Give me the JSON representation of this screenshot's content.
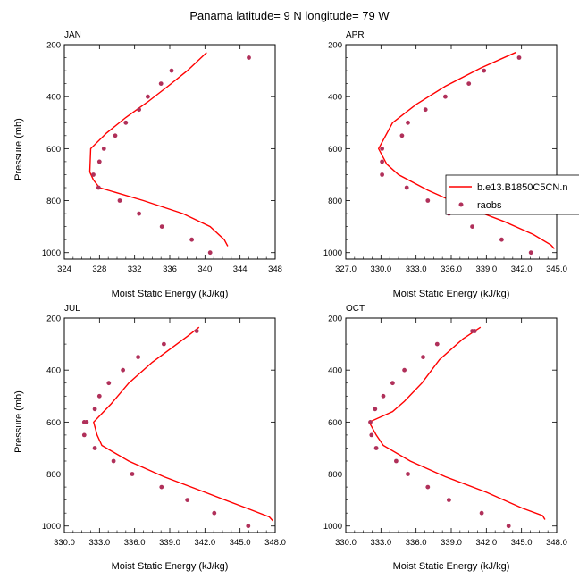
{
  "title": "Panama  latitude= 9 N longitude= 79 W",
  "colors": {
    "model": "#ff0000",
    "obs": "#b0305a",
    "axis": "#000000"
  },
  "legend": {
    "model_label": "b.e13.B1850C5CN.n",
    "obs_label": "raobs"
  },
  "chart_data": [
    {
      "type": "line",
      "panel": "JAN",
      "xlabel": "Moist Static Energy (kJ/kg)",
      "ylabel": "Pressure (mb)",
      "xlim": [
        324,
        348
      ],
      "ylim": [
        200,
        1025
      ],
      "y_inverted": true,
      "xticks": [
        324,
        328,
        332,
        336,
        340,
        344,
        348
      ],
      "xticklabels": [
        "324",
        "328",
        "332",
        "336",
        "340",
        "344",
        "348"
      ],
      "yticks": [
        200,
        400,
        600,
        800,
        1000
      ],
      "series": [
        {
          "marker": "line",
          "x": [
            340.2,
            338.0,
            335.8,
            333.5,
            331.0,
            328.8,
            327.0,
            326.9,
            327.3,
            328.0,
            333.0,
            337.5,
            340.6,
            342.2,
            342.6
          ],
          "y": [
            230,
            300,
            360,
            420,
            480,
            540,
            600,
            690,
            720,
            750,
            800,
            850,
            900,
            950,
            975
          ]
        },
        {
          "marker": "dot",
          "x": [
            345.0,
            336.2,
            335.0,
            333.5,
            332.5,
            331.0,
            329.8,
            328.5,
            328.0,
            327.3,
            327.9,
            330.3,
            332.5,
            335.1,
            338.5,
            340.6
          ],
          "y": [
            250,
            300,
            350,
            400,
            450,
            500,
            550,
            600,
            650,
            700,
            750,
            800,
            850,
            900,
            950,
            1000
          ]
        }
      ]
    },
    {
      "type": "line",
      "panel": "APR",
      "xlabel": "Moist Static Energy (kJ/kg)",
      "ylabel": "",
      "xlim": [
        327,
        345
      ],
      "ylim": [
        200,
        1025
      ],
      "y_inverted": true,
      "xticks": [
        327,
        330,
        333,
        336,
        339,
        342,
        345
      ],
      "xticklabels": [
        "327.0",
        "330.0",
        "333.0",
        "336.0",
        "339.0",
        "342.0",
        "345.0"
      ],
      "yticks": [
        200,
        400,
        600,
        800,
        1000
      ],
      "series": [
        {
          "marker": "line",
          "x": [
            341.5,
            338.5,
            335.5,
            333.0,
            331.0,
            329.8,
            330.5,
            331.5,
            334.0,
            337.0,
            340.5,
            343.0,
            344.5,
            344.8
          ],
          "y": [
            230,
            290,
            360,
            430,
            500,
            600,
            660,
            700,
            760,
            820,
            880,
            930,
            970,
            985
          ]
        },
        {
          "marker": "dot",
          "x": [
            341.8,
            338.8,
            337.5,
            335.5,
            333.8,
            332.3,
            331.8,
            330.1,
            330.1,
            330.1,
            332.2,
            334.0,
            335.8,
            337.8,
            340.3,
            342.8
          ],
          "y": [
            250,
            300,
            350,
            400,
            450,
            500,
            550,
            600,
            650,
            700,
            750,
            800,
            850,
            900,
            950,
            1000
          ]
        }
      ]
    },
    {
      "type": "line",
      "panel": "JUL",
      "xlabel": "Moist Static Energy (kJ/kg)",
      "ylabel": "Pressure (mb)",
      "xlim": [
        330,
        348
      ],
      "ylim": [
        200,
        1025
      ],
      "y_inverted": true,
      "xticks": [
        330,
        333,
        336,
        339,
        342,
        345,
        348
      ],
      "xticklabels": [
        "330.0",
        "333.0",
        "336.0",
        "339.0",
        "342.0",
        "345.0",
        "348.0"
      ],
      "yticks": [
        200,
        400,
        600,
        800,
        1000
      ],
      "series": [
        {
          "marker": "line",
          "x": [
            341.5,
            340.5,
            337.5,
            335.5,
            334.0,
            332.5,
            332.8,
            333.2,
            335.5,
            338.5,
            342.0,
            345.5,
            347.5,
            347.8
          ],
          "y": [
            235,
            270,
            370,
            450,
            530,
            600,
            650,
            690,
            750,
            810,
            870,
            930,
            965,
            980
          ]
        },
        {
          "marker": "dot",
          "x": [
            341.3,
            338.5,
            336.3,
            335.0,
            333.8,
            333.0,
            332.6,
            331.9,
            331.7,
            331.7,
            332.6,
            334.2,
            335.8,
            338.3,
            340.5,
            342.8,
            345.7
          ],
          "y": [
            250,
            300,
            350,
            400,
            450,
            500,
            550,
            600,
            600,
            650,
            700,
            750,
            800,
            850,
            900,
            950,
            1000
          ]
        }
      ]
    },
    {
      "type": "line",
      "panel": "OCT",
      "xlabel": "Moist Static Energy (kJ/kg)",
      "ylabel": "",
      "xlim": [
        330,
        348
      ],
      "ylim": [
        200,
        1025
      ],
      "y_inverted": true,
      "xticks": [
        330,
        333,
        336,
        339,
        342,
        345,
        348
      ],
      "xticklabels": [
        "330.0",
        "333.0",
        "336.0",
        "339.0",
        "342.0",
        "345.0",
        "348.0"
      ],
      "yticks": [
        200,
        400,
        600,
        800,
        1000
      ],
      "series": [
        {
          "marker": "line",
          "x": [
            341.5,
            340.0,
            338.0,
            336.5,
            335.0,
            334.0,
            332.0,
            332.6,
            333.2,
            335.5,
            338.5,
            342.0,
            345.0,
            346.8,
            347.0
          ],
          "y": [
            235,
            280,
            360,
            450,
            520,
            560,
            600,
            650,
            690,
            750,
            810,
            870,
            930,
            960,
            975
          ]
        },
        {
          "marker": "dot",
          "x": [
            341.0,
            340.8,
            337.8,
            336.6,
            335.0,
            334.0,
            333.2,
            332.5,
            332.1,
            332.2,
            332.6,
            334.3,
            335.3,
            337.0,
            338.8,
            341.6,
            343.9
          ],
          "y": [
            250,
            250,
            300,
            350,
            400,
            450,
            500,
            550,
            600,
            650,
            700,
            750,
            800,
            850,
            900,
            950,
            1000
          ]
        }
      ]
    }
  ]
}
